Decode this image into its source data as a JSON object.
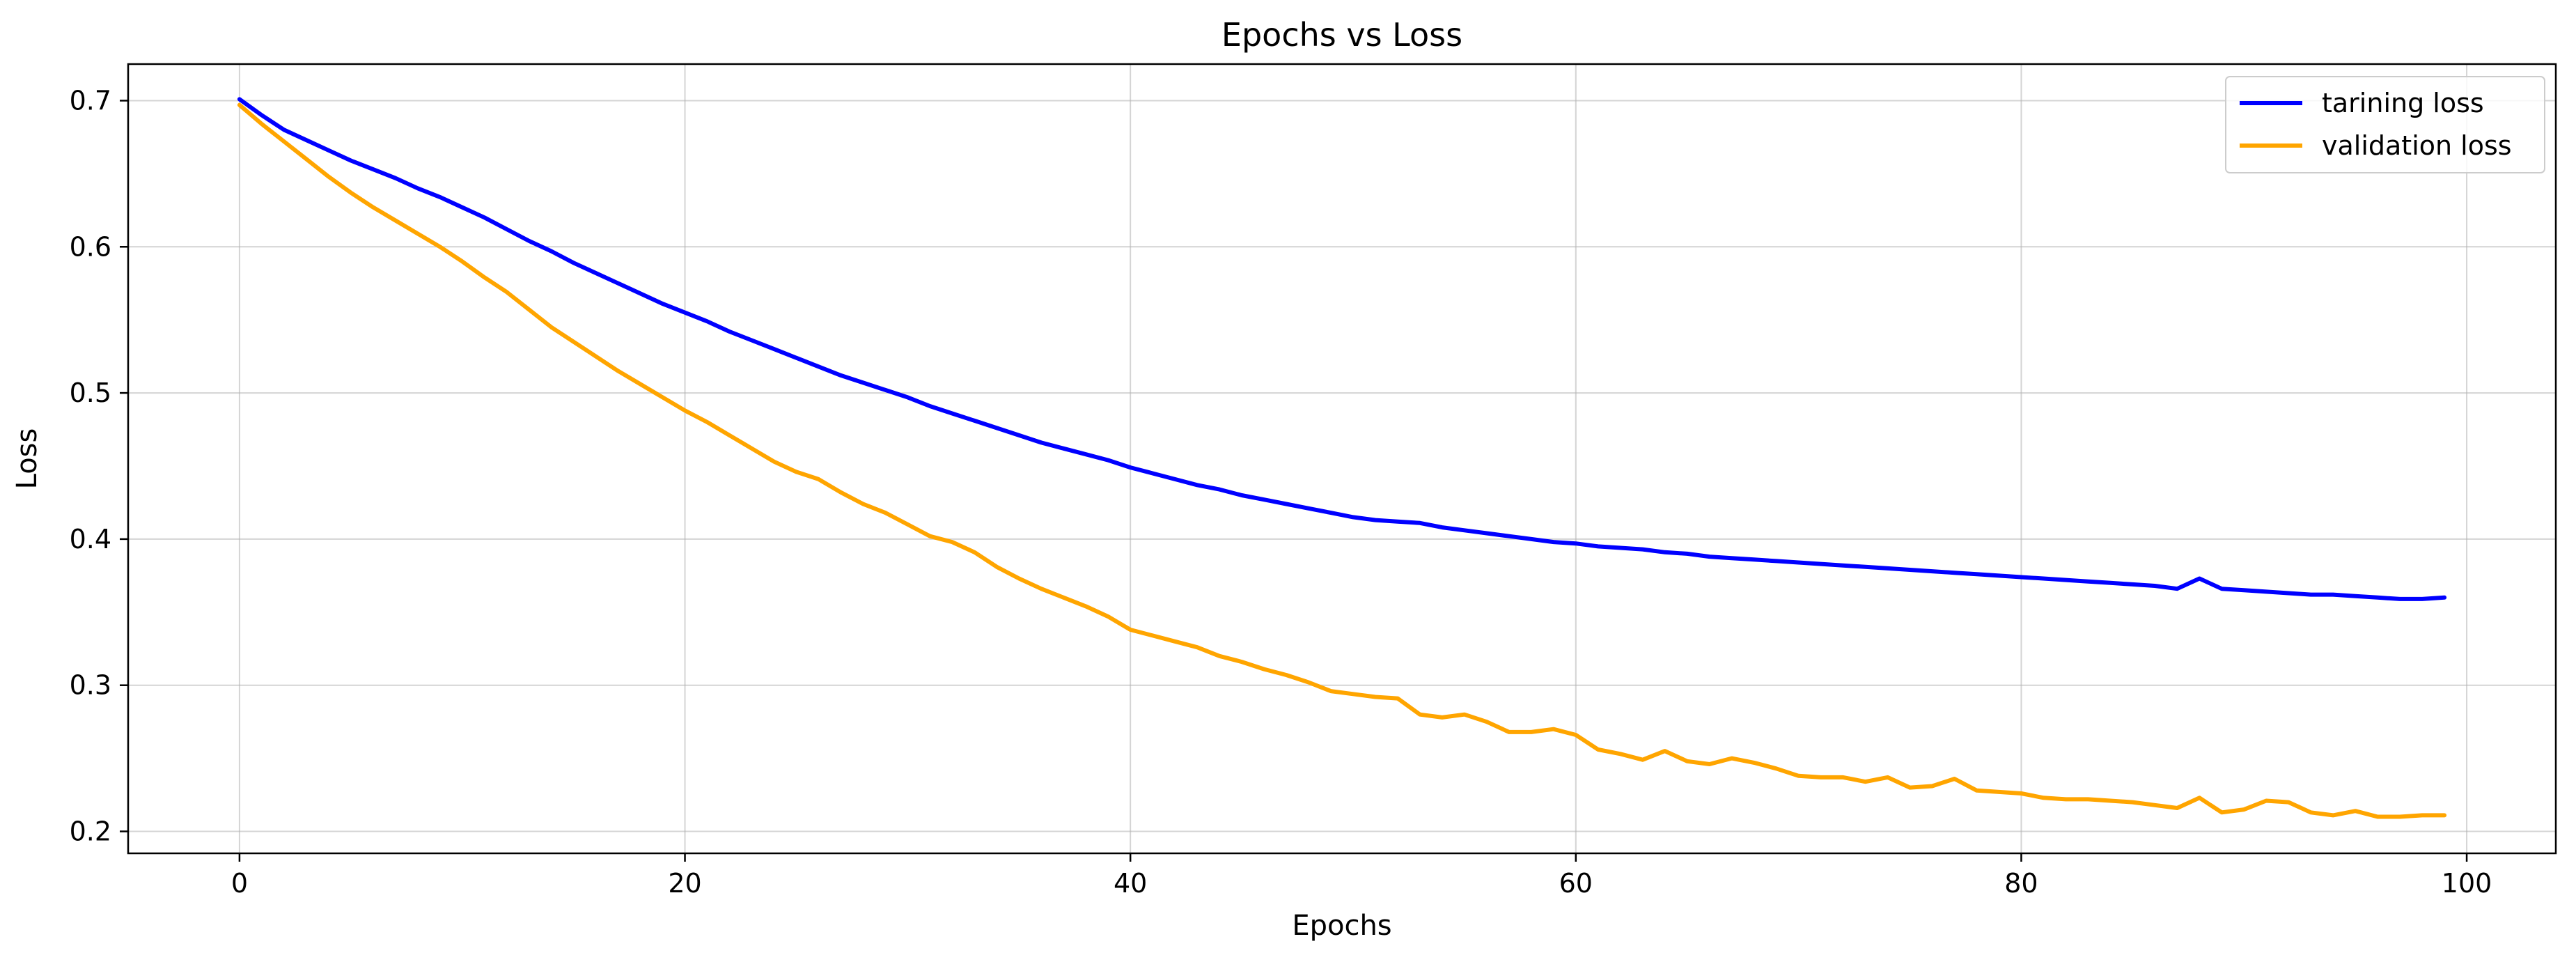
{
  "chart_data": {
    "type": "line",
    "title": "Epochs vs Loss",
    "xlabel": "Epochs",
    "ylabel": "Loss",
    "xlim": [
      -5,
      104
    ],
    "ylim": [
      0.185,
      0.725
    ],
    "xticks": [
      0,
      20,
      40,
      60,
      80,
      100
    ],
    "yticks": [
      0.2,
      0.3,
      0.4,
      0.5,
      0.6,
      0.7
    ],
    "xtick_labels": [
      "0",
      "20",
      "40",
      "60",
      "80",
      "100"
    ],
    "ytick_labels": [
      "0.2",
      "0.3",
      "0.4",
      "0.5",
      "0.6",
      "0.7"
    ],
    "grid": true,
    "legend_position": "top-right",
    "series": [
      {
        "name": "tarining loss",
        "color": "#0000ff",
        "values": [
          0.701,
          0.69,
          0.68,
          0.673,
          0.666,
          0.659,
          0.653,
          0.647,
          0.64,
          0.634,
          0.627,
          0.62,
          0.612,
          0.604,
          0.597,
          0.589,
          0.582,
          0.575,
          0.568,
          0.561,
          0.555,
          0.549,
          0.542,
          0.536,
          0.53,
          0.524,
          0.518,
          0.512,
          0.507,
          0.502,
          0.497,
          0.491,
          0.486,
          0.481,
          0.476,
          0.471,
          0.466,
          0.462,
          0.458,
          0.454,
          0.449,
          0.445,
          0.441,
          0.437,
          0.434,
          0.43,
          0.427,
          0.424,
          0.421,
          0.418,
          0.415,
          0.413,
          0.412,
          0.411,
          0.408,
          0.406,
          0.404,
          0.402,
          0.4,
          0.398,
          0.397,
          0.395,
          0.394,
          0.393,
          0.391,
          0.39,
          0.388,
          0.387,
          0.386,
          0.385,
          0.384,
          0.383,
          0.382,
          0.381,
          0.38,
          0.379,
          0.378,
          0.377,
          0.376,
          0.375,
          0.374,
          0.373,
          0.372,
          0.371,
          0.37,
          0.369,
          0.368,
          0.366,
          0.373,
          0.366,
          0.365,
          0.364,
          0.363,
          0.362,
          0.362,
          0.361,
          0.36,
          0.359,
          0.359,
          0.36
        ]
      },
      {
        "name": "validation loss",
        "color": "#ffa500",
        "values": [
          0.697,
          0.684,
          0.672,
          0.66,
          0.648,
          0.637,
          0.627,
          0.618,
          0.609,
          0.6,
          0.59,
          0.579,
          0.569,
          0.557,
          0.545,
          0.535,
          0.525,
          0.515,
          0.506,
          0.497,
          0.488,
          0.48,
          0.471,
          0.462,
          0.453,
          0.446,
          0.441,
          0.432,
          0.424,
          0.418,
          0.41,
          0.402,
          0.398,
          0.391,
          0.381,
          0.373,
          0.366,
          0.36,
          0.354,
          0.347,
          0.338,
          0.334,
          0.33,
          0.326,
          0.32,
          0.316,
          0.311,
          0.307,
          0.302,
          0.296,
          0.294,
          0.292,
          0.291,
          0.28,
          0.278,
          0.28,
          0.275,
          0.268,
          0.268,
          0.27,
          0.266,
          0.256,
          0.253,
          0.249,
          0.255,
          0.248,
          0.246,
          0.25,
          0.247,
          0.243,
          0.238,
          0.237,
          0.237,
          0.234,
          0.237,
          0.23,
          0.231,
          0.236,
          0.228,
          0.227,
          0.226,
          0.223,
          0.222,
          0.222,
          0.221,
          0.22,
          0.218,
          0.216,
          0.223,
          0.213,
          0.215,
          0.221,
          0.22,
          0.213,
          0.211,
          0.214,
          0.21,
          0.21,
          0.211,
          0.211
        ]
      }
    ]
  }
}
